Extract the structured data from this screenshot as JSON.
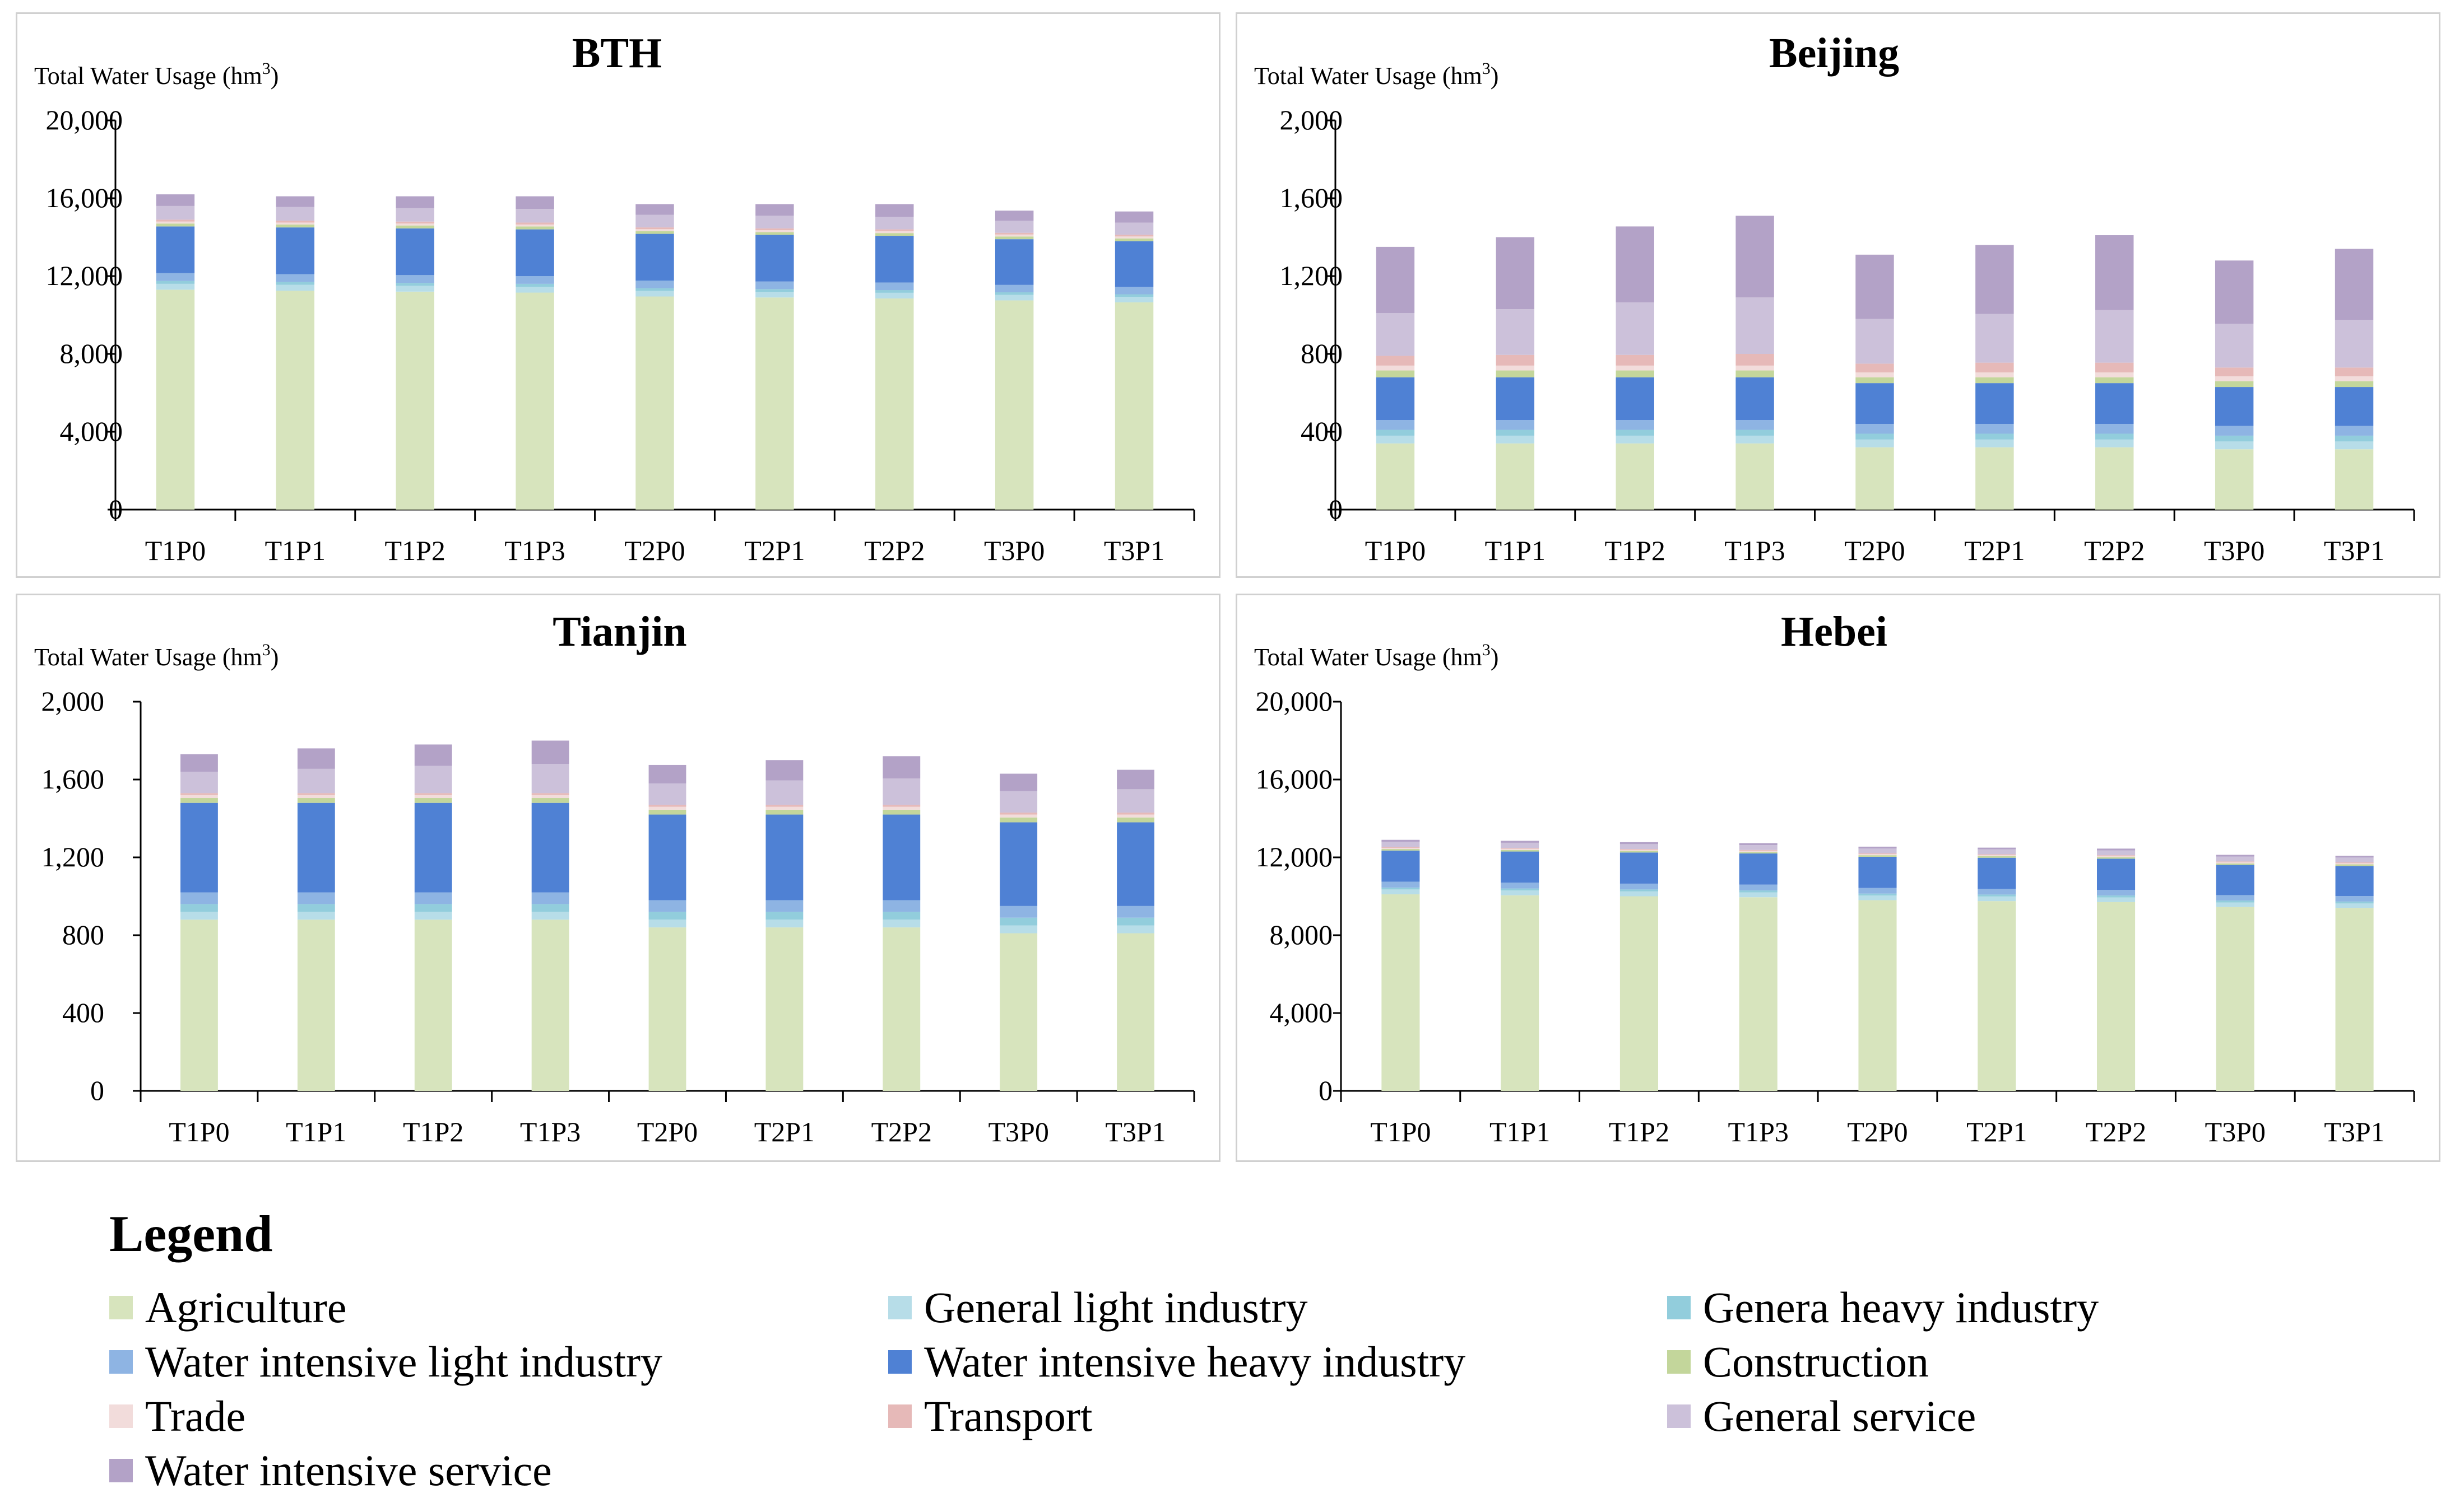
{
  "y_axis_label": "Total Water Usage (hm",
  "y_axis_label_sup": "3",
  "y_axis_label_close": ")",
  "sectors": [
    {
      "name": "Agriculture",
      "color": "#d7e4bd"
    },
    {
      "name": "General light industry",
      "color": "#b7dde8"
    },
    {
      "name": "Genera heavy industry",
      "color": "#92cddc"
    },
    {
      "name": "Water intensive light industry",
      "color": "#8eb4e3"
    },
    {
      "name": "Water intensive heavy industry",
      "color": "#4f81d4"
    },
    {
      "name": "Construction",
      "color": "#c3d69b"
    },
    {
      "name": "Trade",
      "color": "#f2dcdb"
    },
    {
      "name": "Transport",
      "color": "#e6b9b8"
    },
    {
      "name": "General service",
      "color": "#ccc1da"
    },
    {
      "name": "Water intensive service",
      "color": "#b3a2c7"
    }
  ],
  "legend": {
    "title": "Legend"
  },
  "chart_data": [
    {
      "type": "bar",
      "stacked": true,
      "title": "BTH",
      "ylabel": "Total Water Usage (hm3)",
      "ylim": [
        0,
        20000
      ],
      "yticks": [
        "0",
        "4,000",
        "8,000",
        "12,000",
        "16,000",
        "20,000"
      ],
      "categories": [
        "T1P0",
        "T1P1",
        "T1P2",
        "T1P3",
        "T2P0",
        "T2P1",
        "T2P2",
        "T3P0",
        "T3P1"
      ],
      "series": [
        {
          "name": "Agriculture",
          "values": [
            11300,
            11250,
            11200,
            11150,
            10950,
            10900,
            10850,
            10750,
            10650
          ]
        },
        {
          "name": "General light industry",
          "values": [
            300,
            300,
            300,
            300,
            290,
            290,
            290,
            280,
            280
          ]
        },
        {
          "name": "Genera heavy industry",
          "values": [
            150,
            150,
            150,
            150,
            140,
            140,
            140,
            135,
            135
          ]
        },
        {
          "name": "Water intensive light industry",
          "values": [
            400,
            400,
            400,
            400,
            390,
            390,
            390,
            380,
            380
          ]
        },
        {
          "name": "Water intensive heavy industry",
          "values": [
            2400,
            2400,
            2400,
            2400,
            2400,
            2400,
            2400,
            2350,
            2350
          ]
        },
        {
          "name": "Construction",
          "values": [
            150,
            150,
            150,
            150,
            140,
            140,
            140,
            140,
            140
          ]
        },
        {
          "name": "Trade",
          "values": [
            100,
            100,
            100,
            100,
            100,
            100,
            100,
            100,
            100
          ]
        },
        {
          "name": "Transport",
          "values": [
            100,
            100,
            100,
            100,
            90,
            90,
            90,
            90,
            90
          ]
        },
        {
          "name": "General service",
          "values": [
            700,
            700,
            700,
            700,
            650,
            650,
            650,
            620,
            620
          ]
        },
        {
          "name": "Water intensive service",
          "values": [
            600,
            550,
            600,
            650,
            550,
            600,
            650,
            520,
            575
          ]
        }
      ]
    },
    {
      "type": "bar",
      "stacked": true,
      "title": "Beijing",
      "ylabel": "Total Water Usage (hm3)",
      "ylim": [
        0,
        2000
      ],
      "yticks": [
        "0",
        "400",
        "800",
        "1,200",
        "1,600",
        "2,000"
      ],
      "categories": [
        "T1P0",
        "T1P1",
        "T1P2",
        "T1P3",
        "T2P0",
        "T2P1",
        "T2P2",
        "T3P0",
        "T3P1"
      ],
      "series": [
        {
          "name": "Agriculture",
          "values": [
            340,
            340,
            340,
            340,
            320,
            320,
            320,
            310,
            310
          ]
        },
        {
          "name": "General light industry",
          "values": [
            40,
            40,
            40,
            40,
            40,
            40,
            40,
            40,
            40
          ]
        },
        {
          "name": "Genera heavy industry",
          "values": [
            30,
            30,
            30,
            30,
            30,
            30,
            30,
            30,
            30
          ]
        },
        {
          "name": "Water intensive light industry",
          "values": [
            50,
            50,
            50,
            50,
            50,
            50,
            50,
            50,
            50
          ]
        },
        {
          "name": "Water intensive heavy industry",
          "values": [
            220,
            220,
            220,
            220,
            210,
            210,
            210,
            200,
            200
          ]
        },
        {
          "name": "Construction",
          "values": [
            35,
            35,
            35,
            35,
            30,
            30,
            30,
            30,
            30
          ]
        },
        {
          "name": "Trade",
          "values": [
            25,
            25,
            25,
            25,
            25,
            25,
            25,
            25,
            25
          ]
        },
        {
          "name": "Transport",
          "values": [
            50,
            55,
            55,
            60,
            45,
            50,
            50,
            45,
            45
          ]
        },
        {
          "name": "General service",
          "values": [
            220,
            235,
            270,
            290,
            230,
            250,
            270,
            225,
            245
          ]
        },
        {
          "name": "Water intensive service",
          "values": [
            340,
            370,
            390,
            420,
            330,
            355,
            385,
            325,
            365
          ]
        }
      ]
    },
    {
      "type": "bar",
      "stacked": true,
      "title": "Tianjin",
      "ylabel": "Total Water Usage (hm3)",
      "ylim": [
        0,
        2000
      ],
      "yticks": [
        "0",
        "400",
        "800",
        "1,200",
        "1,600",
        "2,000"
      ],
      "categories": [
        "T1P0",
        "T1P1",
        "T1P2",
        "T1P3",
        "T2P0",
        "T2P1",
        "T2P2",
        "T3P0",
        "T3P1"
      ],
      "series": [
        {
          "name": "Agriculture",
          "values": [
            880,
            880,
            880,
            880,
            840,
            840,
            840,
            810,
            810
          ]
        },
        {
          "name": "General light industry",
          "values": [
            40,
            40,
            40,
            40,
            40,
            40,
            40,
            40,
            40
          ]
        },
        {
          "name": "Genera heavy industry",
          "values": [
            40,
            40,
            40,
            40,
            40,
            40,
            40,
            40,
            40
          ]
        },
        {
          "name": "Water intensive light industry",
          "values": [
            60,
            60,
            60,
            60,
            60,
            60,
            60,
            60,
            60
          ]
        },
        {
          "name": "Water intensive heavy industry",
          "values": [
            460,
            460,
            460,
            460,
            440,
            440,
            440,
            430,
            430
          ]
        },
        {
          "name": "Construction",
          "values": [
            25,
            25,
            25,
            25,
            25,
            25,
            25,
            25,
            25
          ]
        },
        {
          "name": "Trade",
          "values": [
            15,
            15,
            15,
            15,
            15,
            15,
            15,
            15,
            15
          ]
        },
        {
          "name": "Transport",
          "values": [
            10,
            10,
            10,
            10,
            10,
            10,
            10,
            10,
            10
          ]
        },
        {
          "name": "General service",
          "values": [
            110,
            125,
            140,
            150,
            110,
            125,
            135,
            110,
            120
          ]
        },
        {
          "name": "Water intensive service",
          "values": [
            90,
            105,
            110,
            120,
            95,
            105,
            115,
            90,
            100
          ]
        }
      ]
    },
    {
      "type": "bar",
      "stacked": true,
      "title": "Hebei",
      "ylabel": "Total Water Usage (hm3)",
      "ylim": [
        0,
        20000
      ],
      "yticks": [
        "0",
        "4,000",
        "8,000",
        "12,000",
        "16,000",
        "20,000"
      ],
      "categories": [
        "T1P0",
        "T1P1",
        "T1P2",
        "T1P3",
        "T2P0",
        "T2P1",
        "T2P2",
        "T3P0",
        "T3P1"
      ],
      "series": [
        {
          "name": "Agriculture",
          "values": [
            10100,
            10050,
            10000,
            9950,
            9800,
            9750,
            9700,
            9450,
            9400
          ]
        },
        {
          "name": "General light industry",
          "values": [
            250,
            250,
            250,
            250,
            240,
            240,
            240,
            230,
            230
          ]
        },
        {
          "name": "Genera heavy industry",
          "values": [
            100,
            100,
            100,
            100,
            100,
            100,
            100,
            100,
            100
          ]
        },
        {
          "name": "Water intensive light industry",
          "values": [
            300,
            300,
            300,
            300,
            290,
            290,
            290,
            280,
            280
          ]
        },
        {
          "name": "Water intensive heavy industry",
          "values": [
            1600,
            1600,
            1600,
            1600,
            1600,
            1600,
            1600,
            1550,
            1550
          ]
        },
        {
          "name": "Construction",
          "values": [
            80,
            80,
            80,
            80,
            80,
            80,
            80,
            80,
            80
          ]
        },
        {
          "name": "Trade",
          "values": [
            60,
            60,
            60,
            60,
            60,
            60,
            60,
            60,
            60
          ]
        },
        {
          "name": "Transport",
          "values": [
            40,
            40,
            40,
            40,
            40,
            40,
            40,
            40,
            40
          ]
        },
        {
          "name": "General service",
          "values": [
            270,
            270,
            250,
            250,
            250,
            250,
            250,
            250,
            250
          ]
        },
        {
          "name": "Water intensive service",
          "values": [
            100,
            100,
            100,
            100,
            90,
            90,
            90,
            90,
            90
          ]
        }
      ]
    }
  ]
}
